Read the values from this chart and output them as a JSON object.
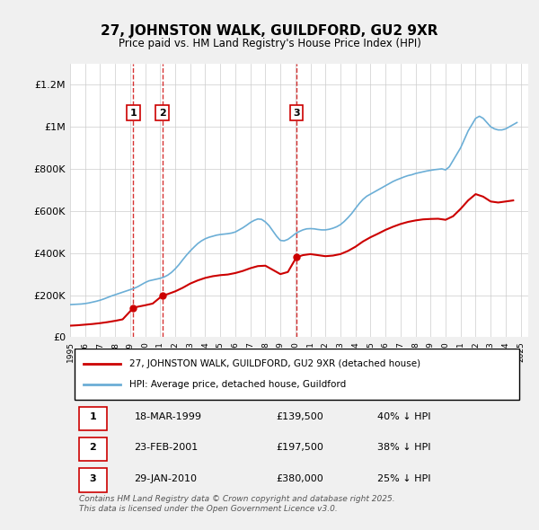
{
  "title": "27, JOHNSTON WALK, GUILDFORD, GU2 9XR",
  "subtitle": "Price paid vs. HM Land Registry's House Price Index (HPI)",
  "background_color": "#f0f0f0",
  "plot_bg_color": "#ffffff",
  "ylabel": "",
  "ylim": [
    0,
    1300000
  ],
  "yticks": [
    0,
    200000,
    400000,
    600000,
    800000,
    1000000,
    1200000
  ],
  "ytick_labels": [
    "£0",
    "£200K",
    "£400K",
    "£600K",
    "£800K",
    "£1M",
    "£1.2M"
  ],
  "hpi_color": "#6baed6",
  "price_color": "#cc0000",
  "transaction_color": "#cc0000",
  "legend_box_color": "#cc0000",
  "legend_hpi_color": "#6baed6",
  "transactions": [
    {
      "label": "1",
      "date": "18-MAR-1999",
      "year": 1999.21,
      "price": 139500,
      "pct": "40%"
    },
    {
      "label": "2",
      "date": "23-FEB-2001",
      "year": 2001.14,
      "price": 197500,
      "pct": "38%"
    },
    {
      "label": "3",
      "date": "29-JAN-2010",
      "year": 2010.07,
      "price": 380000,
      "pct": "25%"
    }
  ],
  "hpi_data": {
    "years": [
      1995.0,
      1995.25,
      1995.5,
      1995.75,
      1996.0,
      1996.25,
      1996.5,
      1996.75,
      1997.0,
      1997.25,
      1997.5,
      1997.75,
      1998.0,
      1998.25,
      1998.5,
      1998.75,
      1999.0,
      1999.25,
      1999.5,
      1999.75,
      2000.0,
      2000.25,
      2000.5,
      2000.75,
      2001.0,
      2001.25,
      2001.5,
      2001.75,
      2002.0,
      2002.25,
      2002.5,
      2002.75,
      2003.0,
      2003.25,
      2003.5,
      2003.75,
      2004.0,
      2004.25,
      2004.5,
      2004.75,
      2005.0,
      2005.25,
      2005.5,
      2005.75,
      2006.0,
      2006.25,
      2006.5,
      2006.75,
      2007.0,
      2007.25,
      2007.5,
      2007.75,
      2008.0,
      2008.25,
      2008.5,
      2008.75,
      2009.0,
      2009.25,
      2009.5,
      2009.75,
      2010.0,
      2010.25,
      2010.5,
      2010.75,
      2011.0,
      2011.25,
      2011.5,
      2011.75,
      2012.0,
      2012.25,
      2012.5,
      2012.75,
      2013.0,
      2013.25,
      2013.5,
      2013.75,
      2014.0,
      2014.25,
      2014.5,
      2014.75,
      2015.0,
      2015.25,
      2015.5,
      2015.75,
      2016.0,
      2016.25,
      2016.5,
      2016.75,
      2017.0,
      2017.25,
      2017.5,
      2017.75,
      2018.0,
      2018.25,
      2018.5,
      2018.75,
      2019.0,
      2019.25,
      2019.5,
      2019.75,
      2020.0,
      2020.25,
      2020.5,
      2020.75,
      2021.0,
      2021.25,
      2021.5,
      2021.75,
      2022.0,
      2022.25,
      2022.5,
      2022.75,
      2023.0,
      2023.25,
      2023.5,
      2023.75,
      2024.0,
      2024.25,
      2024.5,
      2024.75
    ],
    "values": [
      155000,
      156000,
      157000,
      158000,
      160000,
      163000,
      167000,
      171000,
      176000,
      182000,
      189000,
      196000,
      202000,
      208000,
      214000,
      220000,
      226000,
      232000,
      240000,
      250000,
      260000,
      268000,
      272000,
      276000,
      280000,
      286000,
      295000,
      308000,
      325000,
      345000,
      368000,
      390000,
      410000,
      428000,
      445000,
      458000,
      468000,
      475000,
      480000,
      485000,
      488000,
      490000,
      492000,
      495000,
      500000,
      510000,
      520000,
      532000,
      545000,
      555000,
      562000,
      560000,
      548000,
      530000,
      505000,
      480000,
      460000,
      458000,
      465000,
      478000,
      492000,
      502000,
      510000,
      515000,
      516000,
      515000,
      512000,
      510000,
      510000,
      513000,
      518000,
      525000,
      535000,
      550000,
      568000,
      588000,
      612000,
      635000,
      655000,
      670000,
      680000,
      690000,
      700000,
      710000,
      720000,
      730000,
      740000,
      748000,
      755000,
      762000,
      768000,
      772000,
      778000,
      782000,
      786000,
      790000,
      793000,
      796000,
      798000,
      800000,
      795000,
      810000,
      840000,
      870000,
      900000,
      940000,
      980000,
      1010000,
      1040000,
      1050000,
      1040000,
      1020000,
      1000000,
      990000,
      985000,
      985000,
      990000,
      1000000,
      1010000,
      1020000
    ]
  },
  "price_data": {
    "years": [
      1995.0,
      1995.5,
      1996.0,
      1996.5,
      1997.0,
      1997.5,
      1998.0,
      1998.5,
      1999.21,
      1999.5,
      2000.0,
      2000.5,
      2001.14,
      2001.5,
      2002.0,
      2002.5,
      2003.0,
      2003.5,
      2004.0,
      2004.5,
      2005.0,
      2005.5,
      2006.0,
      2006.5,
      2007.0,
      2007.5,
      2008.0,
      2008.5,
      2009.0,
      2009.5,
      2010.07,
      2010.5,
      2011.0,
      2011.5,
      2012.0,
      2012.5,
      2013.0,
      2013.5,
      2014.0,
      2014.5,
      2015.0,
      2015.5,
      2016.0,
      2016.5,
      2017.0,
      2017.5,
      2018.0,
      2018.5,
      2019.0,
      2019.5,
      2020.0,
      2020.5,
      2021.0,
      2021.5,
      2022.0,
      2022.5,
      2023.0,
      2023.5,
      2024.0,
      2024.5
    ],
    "values": [
      55000,
      57000,
      60000,
      63000,
      67000,
      72000,
      78000,
      85000,
      139500,
      145000,
      152000,
      160000,
      197500,
      205000,
      218000,
      235000,
      255000,
      270000,
      282000,
      290000,
      295000,
      298000,
      305000,
      315000,
      328000,
      338000,
      340000,
      320000,
      300000,
      310000,
      380000,
      390000,
      395000,
      390000,
      385000,
      388000,
      395000,
      410000,
      430000,
      455000,
      475000,
      492000,
      510000,
      525000,
      538000,
      548000,
      555000,
      560000,
      562000,
      563000,
      558000,
      575000,
      610000,
      650000,
      680000,
      668000,
      645000,
      640000,
      645000,
      650000
    ]
  },
  "footer_text": "Contains HM Land Registry data © Crown copyright and database right 2025.\nThis data is licensed under the Open Government Licence v3.0.",
  "table_rows": [
    [
      "1",
      "18-MAR-1999",
      "£139,500",
      "40% ↓ HPI"
    ],
    [
      "2",
      "23-FEB-2001",
      "£197,500",
      "38% ↓ HPI"
    ],
    [
      "3",
      "29-JAN-2010",
      "£380,000",
      "25% ↓ HPI"
    ]
  ]
}
